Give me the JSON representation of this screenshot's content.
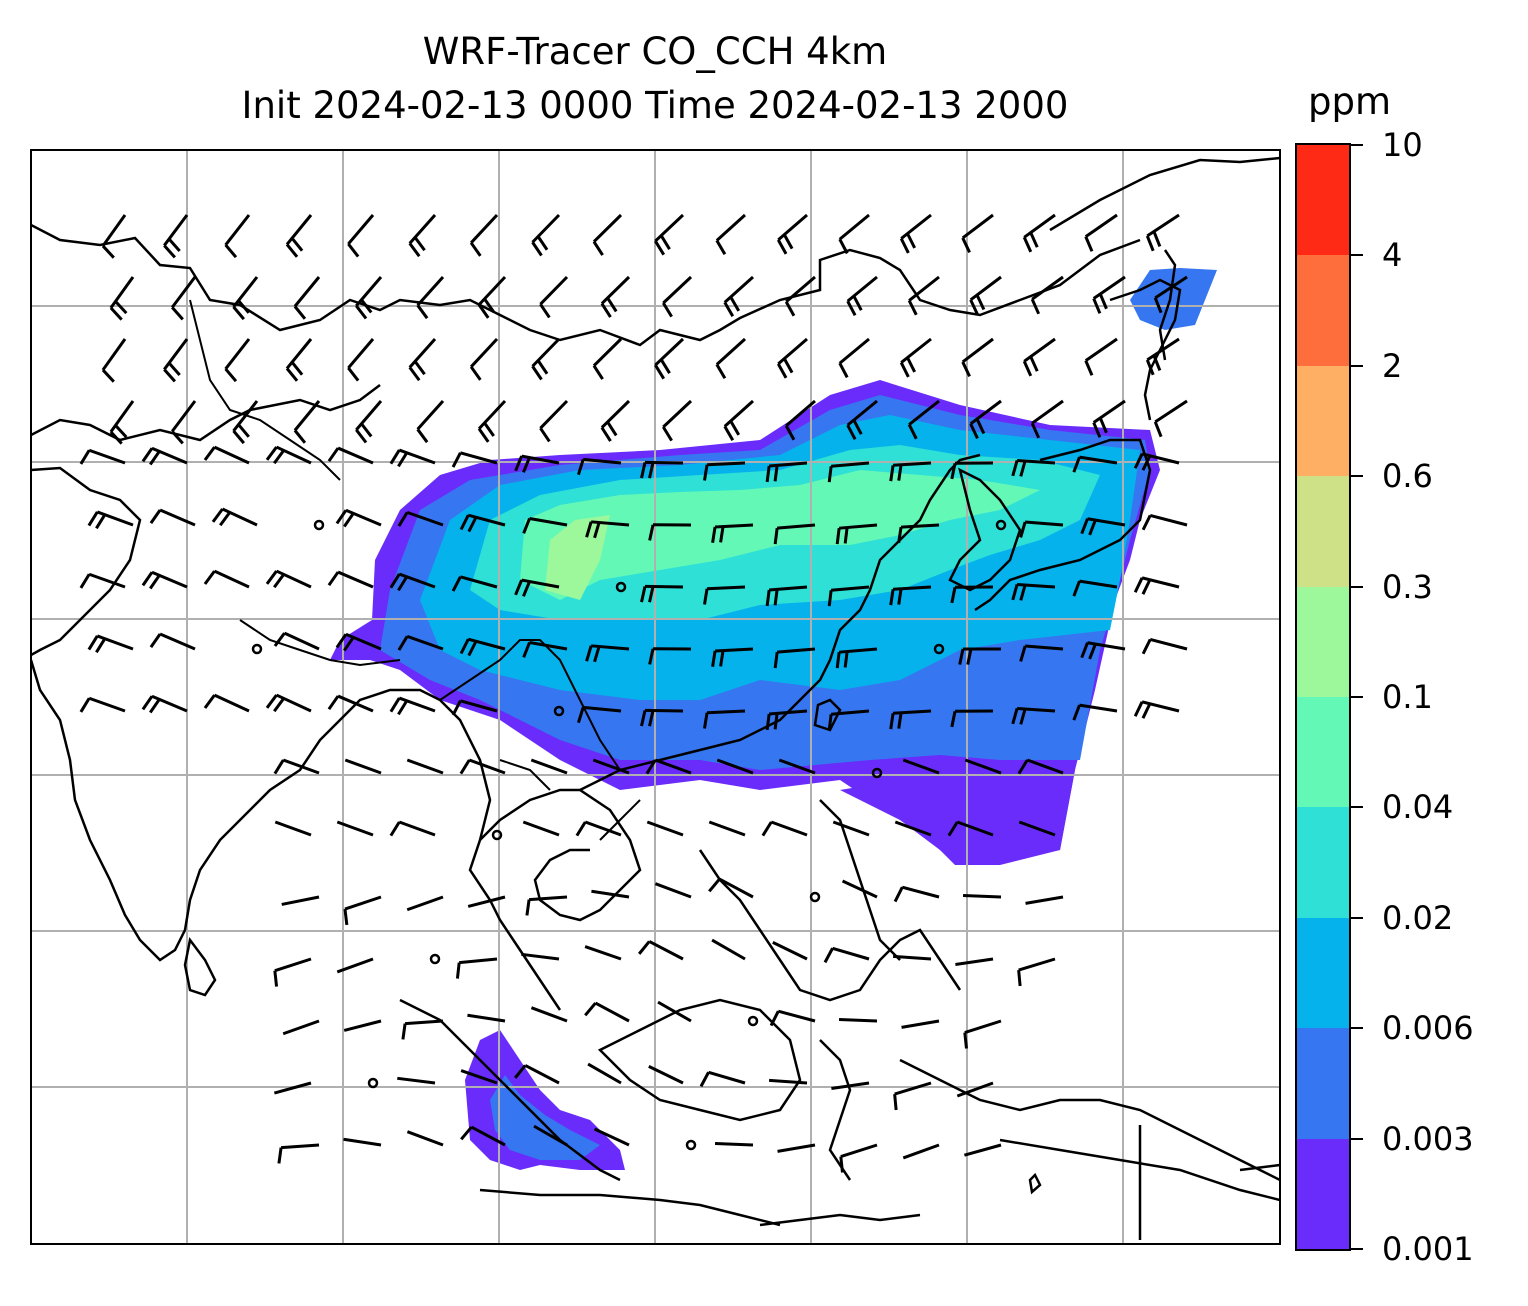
{
  "header": {
    "title_line1": "WRF-Tracer CO_CCH 4km",
    "title_line2": "Init 2024-02-13 0000 Time 2024-02-13 2000"
  },
  "colorbar": {
    "unit": "ppm",
    "ticks": [
      "0.001",
      "0.003",
      "0.006",
      "0.02",
      "0.04",
      "0.1",
      "0.3",
      "0.6",
      "2",
      "4",
      "10"
    ],
    "colors": [
      "#6a2cfb",
      "#3676f0",
      "#06b2ec",
      "#2ee0d6",
      "#64f8b7",
      "#9cf89a",
      "#cfe186",
      "#feaf63",
      "#fe6e3d",
      "#fe2a16"
    ]
  },
  "map": {
    "gridlines": true,
    "layers": [
      "coastlines",
      "country-borders",
      "tracer-concentration",
      "wind-barbs"
    ]
  }
}
